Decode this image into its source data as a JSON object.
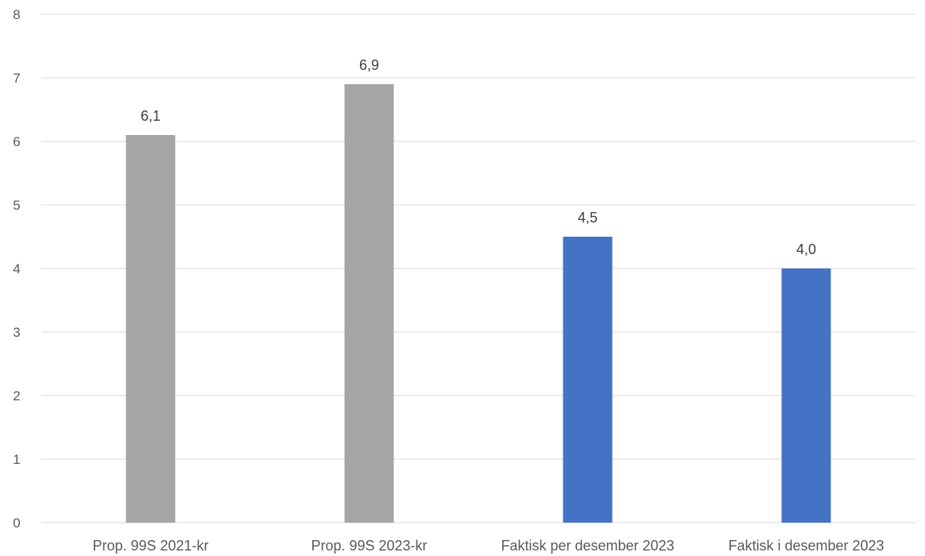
{
  "chart_data": {
    "type": "bar",
    "title": "",
    "xlabel": "",
    "ylabel": "",
    "categories": [
      "Prop. 99S 2021-kr",
      "Prop. 99S 2023-kr",
      "Faktisk per desember 2023",
      "Faktisk i desember 2023"
    ],
    "values": [
      6.1,
      6.9,
      4.5,
      4.0
    ],
    "data_labels": [
      "6,1",
      "6,9",
      "4,5",
      "4,0"
    ],
    "bar_colors": [
      "#a5a5a5",
      "#a5a5a5",
      "#4472c4",
      "#4472c4"
    ],
    "ylim": [
      0,
      8
    ],
    "y_ticks": [
      "0",
      "1",
      "2",
      "3",
      "4",
      "5",
      "6",
      "7",
      "8"
    ],
    "grid": true,
    "legend": "none"
  }
}
